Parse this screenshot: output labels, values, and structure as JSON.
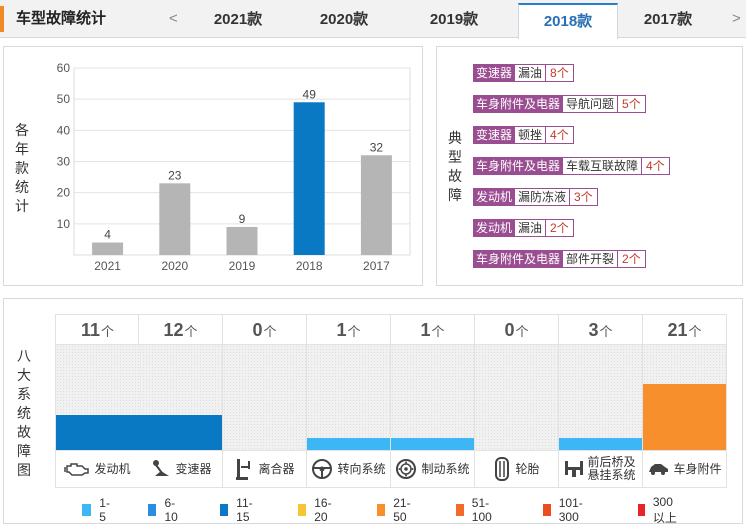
{
  "header": {
    "title": "车型故障统计",
    "prev_arrow": "<",
    "next_arrow": ">",
    "tabs": [
      {
        "label": "2021款",
        "active": false
      },
      {
        "label": "2020款",
        "active": false
      },
      {
        "label": "2019款",
        "active": false
      },
      {
        "label": "2018款",
        "active": true
      },
      {
        "label": "2017款",
        "active": false
      }
    ]
  },
  "yearly": {
    "label_chars": [
      "各",
      "年",
      "款",
      "统",
      "计"
    ]
  },
  "chart_data": {
    "type": "bar",
    "title": "",
    "xlabel": "",
    "ylabel": "各年款统计",
    "categories": [
      "2021",
      "2020",
      "2019",
      "2018",
      "2017"
    ],
    "values": [
      4,
      23,
      9,
      49,
      32
    ],
    "highlight": "2018",
    "ylim": [
      0,
      60
    ],
    "yticks": [
      10,
      20,
      30,
      40,
      50,
      60
    ],
    "colors": {
      "default": "#b5b5b5",
      "highlight": "#0879c2"
    },
    "grid": true
  },
  "faults": {
    "label_chars": [
      "典",
      "型",
      "故",
      "障"
    ],
    "items": [
      {
        "category": "变速器",
        "name": "漏油",
        "count": "8个"
      },
      {
        "category": "车身附件及电器",
        "name": "导航问题",
        "count": "5个"
      },
      {
        "category": "变速器",
        "name": "顿挫",
        "count": "4个"
      },
      {
        "category": "车身附件及电器",
        "name": "车载互联故障",
        "count": "4个"
      },
      {
        "category": "发动机",
        "name": "漏防冻液",
        "count": "3个"
      },
      {
        "category": "发动机",
        "name": "漏油",
        "count": "2个"
      },
      {
        "category": "车身附件及电器",
        "name": "部件开裂",
        "count": "2个"
      }
    ]
  },
  "systems": {
    "label_chars": [
      "八",
      "大",
      "系",
      "统",
      "故",
      "障",
      "图"
    ],
    "unit": "个",
    "items": [
      {
        "name": "发动机",
        "count": "11",
        "level": 0.33,
        "color": "#0879c2",
        "icon": "engine-icon"
      },
      {
        "name": "变速器",
        "count": "12",
        "level": 0.33,
        "color": "#0879c2",
        "icon": "gearshift-icon"
      },
      {
        "name": "离合器",
        "count": "0",
        "level": 0,
        "color": "#f1f1f1",
        "icon": "clutch-pedal-icon"
      },
      {
        "name": "转向系统",
        "count": "1",
        "level": 0.11,
        "color": "#3db6f5",
        "icon": "steering-wheel-icon"
      },
      {
        "name": "制动系统",
        "count": "1",
        "level": 0.11,
        "color": "#3db6f5",
        "icon": "brake-disc-icon"
      },
      {
        "name": "轮胎",
        "count": "0",
        "level": 0,
        "color": "#f1f1f1",
        "icon": "tire-icon"
      },
      {
        "name": "前后桥及悬挂系统",
        "count": "3",
        "level": 0.11,
        "color": "#3db6f5",
        "icon": "suspension-icon"
      },
      {
        "name": "车身附件",
        "count": "21",
        "level": 0.63,
        "color": "#f7902c",
        "icon": "car-body-icon"
      }
    ]
  },
  "legend": [
    {
      "label": "1-5",
      "color": "#3db6f5"
    },
    {
      "label": "6-10",
      "color": "#2a8ee0"
    },
    {
      "label": "11-15",
      "color": "#0879c2"
    },
    {
      "label": "16-20",
      "color": "#f6c531"
    },
    {
      "label": "21-50",
      "color": "#f7902c"
    },
    {
      "label": "51-100",
      "color": "#f26b2a"
    },
    {
      "label": "101-300",
      "color": "#ec4d1f"
    },
    {
      "label": "300以上",
      "color": "#e8232a"
    }
  ]
}
